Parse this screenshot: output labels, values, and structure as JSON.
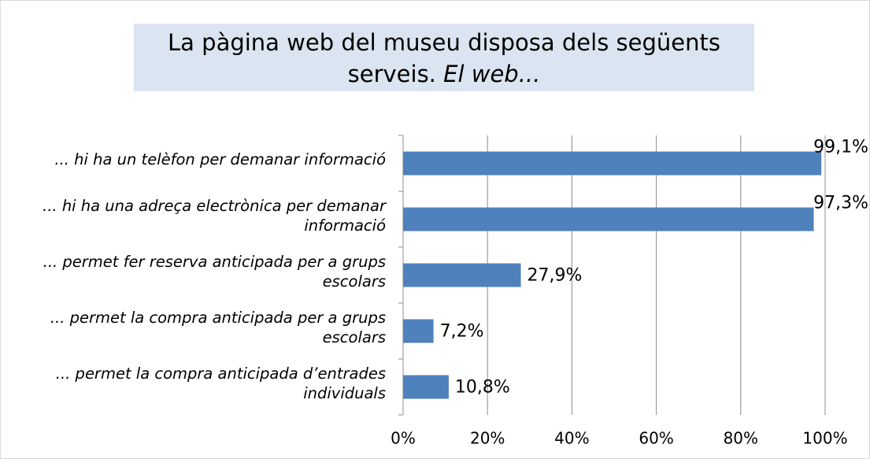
{
  "chart_data": {
    "type": "bar",
    "orientation": "horizontal",
    "title": "La pàgina web del museu disposa dels següents serveis.",
    "subtitle": "El web...",
    "categories": [
      "... hi ha un telèfon per demanar informació",
      "... hi ha una adreça electrònica per demanar informació",
      "... permet fer reserva anticipada per a grups escolars",
      "... permet la compra anticipada per a grups escolars",
      "... permet la compra anticipada d’entrades individuals"
    ],
    "values": [
      99.1,
      97.3,
      27.9,
      7.2,
      10.8
    ],
    "value_labels": [
      "99,1%",
      "97,3%",
      "27,9%",
      "7,2%",
      "10,8%"
    ],
    "color": "#4f81bd",
    "xlim": [
      0,
      100
    ],
    "xticks": [
      {
        "value": 0,
        "label": "0%"
      },
      {
        "value": 20,
        "label": "20%"
      },
      {
        "value": 40,
        "label": "40%"
      },
      {
        "value": 60,
        "label": "60%"
      },
      {
        "value": 80,
        "label": "80%"
      },
      {
        "value": 100,
        "label": "100%"
      }
    ],
    "grid": true
  }
}
